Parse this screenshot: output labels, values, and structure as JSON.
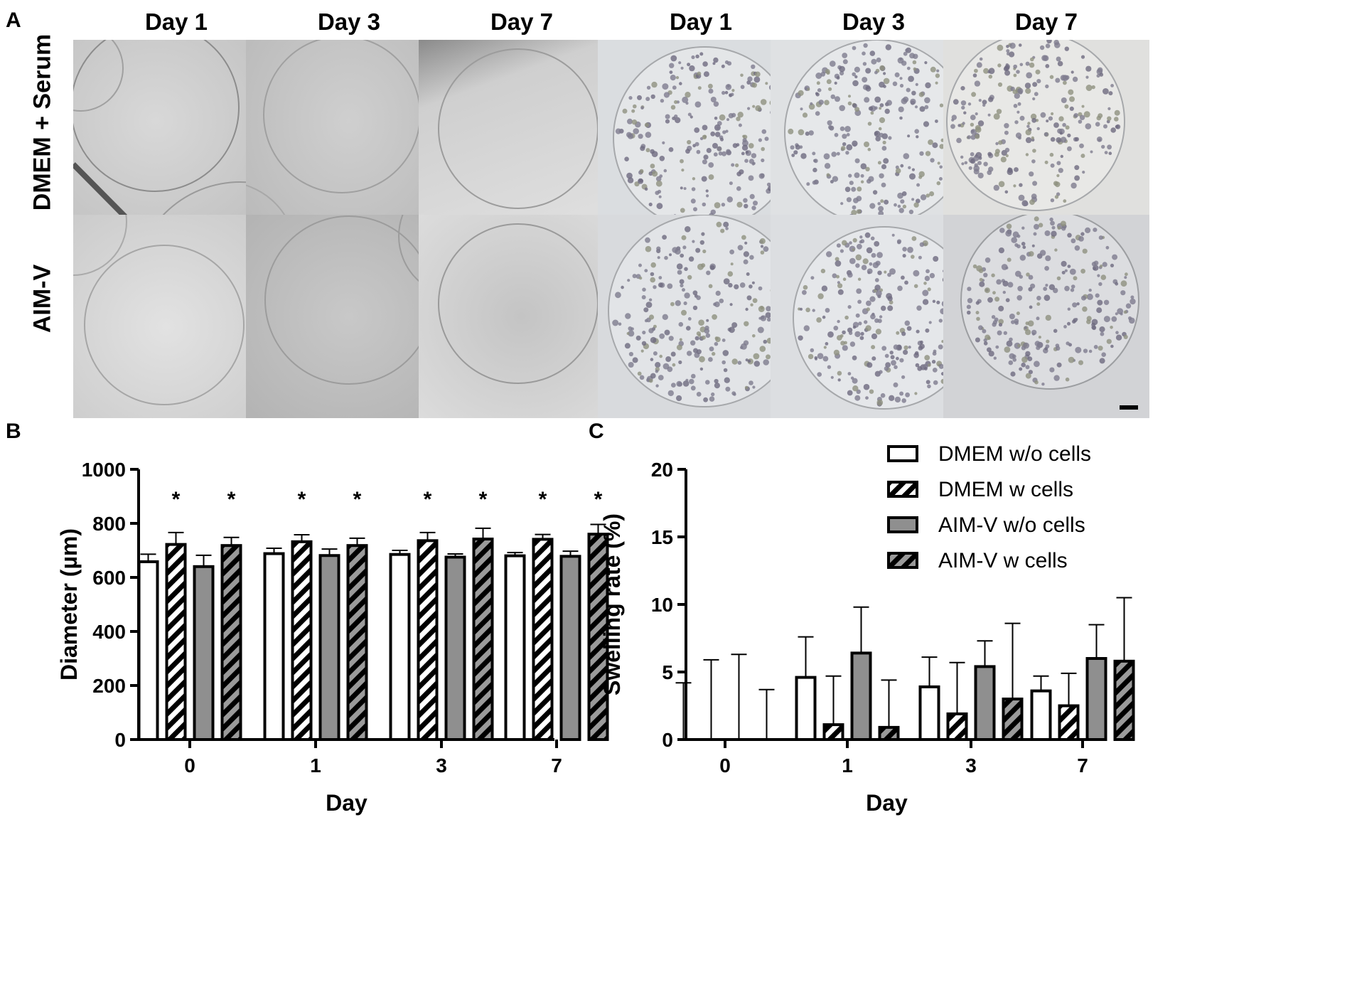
{
  "figure": {
    "panel_a": {
      "letter": "A",
      "column_labels": [
        "Day 1",
        "Day 3",
        "Day 7",
        "Day 1",
        "Day 3",
        "Day 7"
      ],
      "row_labels": [
        "DMEM + Serum",
        "AIM-V"
      ]
    },
    "panel_b_letter": "B",
    "panel_c_letter": "C",
    "legend": [
      "DMEM w/o cells",
      "DMEM w cells",
      "AIM-V w/o cells",
      "AIM-V w cells"
    ],
    "colors": {
      "white_bar": "#ffffff",
      "gray_bar": "#8f8f8f",
      "hatched_gray_bar": "#9a9a9a",
      "black": "#000000"
    }
  },
  "chart_data": [
    {
      "type": "bar",
      "panel": "B",
      "title": "",
      "xlabel": "Day",
      "ylabel": "Diameter (µm)",
      "categories": [
        "0",
        "1",
        "3",
        "7"
      ],
      "ylim": [
        0,
        1000
      ],
      "yticks": [
        "0",
        "200",
        "400",
        "600",
        "800",
        "1000"
      ],
      "series": [
        {
          "name": "DMEM w/o cells",
          "values": [
            658,
            688,
            685,
            680
          ],
          "errors": [
            28,
            20,
            15,
            12
          ]
        },
        {
          "name": "DMEM w cells",
          "values": [
            722,
            732,
            736,
            741
          ],
          "errors": [
            44,
            26,
            30,
            18
          ]
        },
        {
          "name": "AIM-V w/o cells",
          "values": [
            640,
            681,
            675,
            678
          ],
          "errors": [
            42,
            24,
            12,
            19
          ]
        },
        {
          "name": "AIM-V w cells",
          "values": [
            718,
            718,
            742,
            760
          ],
          "errors": [
            30,
            27,
            40,
            36
          ]
        }
      ],
      "annotations": [
        {
          "category": "0",
          "series": "DMEM w cells",
          "text": "*"
        },
        {
          "category": "0",
          "series": "AIM-V w cells",
          "text": "*"
        },
        {
          "category": "1",
          "series": "DMEM w cells",
          "text": "*"
        },
        {
          "category": "1",
          "series": "AIM-V w cells",
          "text": "*"
        },
        {
          "category": "3",
          "series": "DMEM w cells",
          "text": "*"
        },
        {
          "category": "3",
          "series": "AIM-V w cells",
          "text": "*"
        },
        {
          "category": "7",
          "series": "DMEM w cells",
          "text": "*"
        },
        {
          "category": "7",
          "series": "AIM-V w cells",
          "text": "*"
        }
      ],
      "annotation_value": 900,
      "grid": false
    },
    {
      "type": "bar",
      "panel": "C",
      "title": "",
      "xlabel": "Day",
      "ylabel": "Swelling rate (%)",
      "categories": [
        "0",
        "1",
        "3",
        "7"
      ],
      "ylim": [
        0,
        20
      ],
      "yticks": [
        "0",
        "5",
        "10",
        "15",
        "20"
      ],
      "series": [
        {
          "name": "DMEM w/o cells",
          "values": [
            0,
            4.6,
            3.9,
            3.6
          ],
          "errors": [
            4.2,
            3.0,
            2.2,
            1.1
          ]
        },
        {
          "name": "DMEM w cells",
          "values": [
            0,
            1.1,
            1.9,
            2.5
          ],
          "errors": [
            5.9,
            3.6,
            3.8,
            2.4
          ]
        },
        {
          "name": "AIM-V w/o cells",
          "values": [
            0,
            6.4,
            5.4,
            6.0
          ],
          "errors": [
            6.3,
            3.4,
            1.9,
            2.5
          ]
        },
        {
          "name": "AIM-V w cells",
          "values": [
            0,
            0.9,
            3.0,
            5.8
          ],
          "errors": [
            3.7,
            3.5,
            5.6,
            4.7
          ]
        }
      ],
      "legend_position": "top-right",
      "grid": false
    }
  ]
}
